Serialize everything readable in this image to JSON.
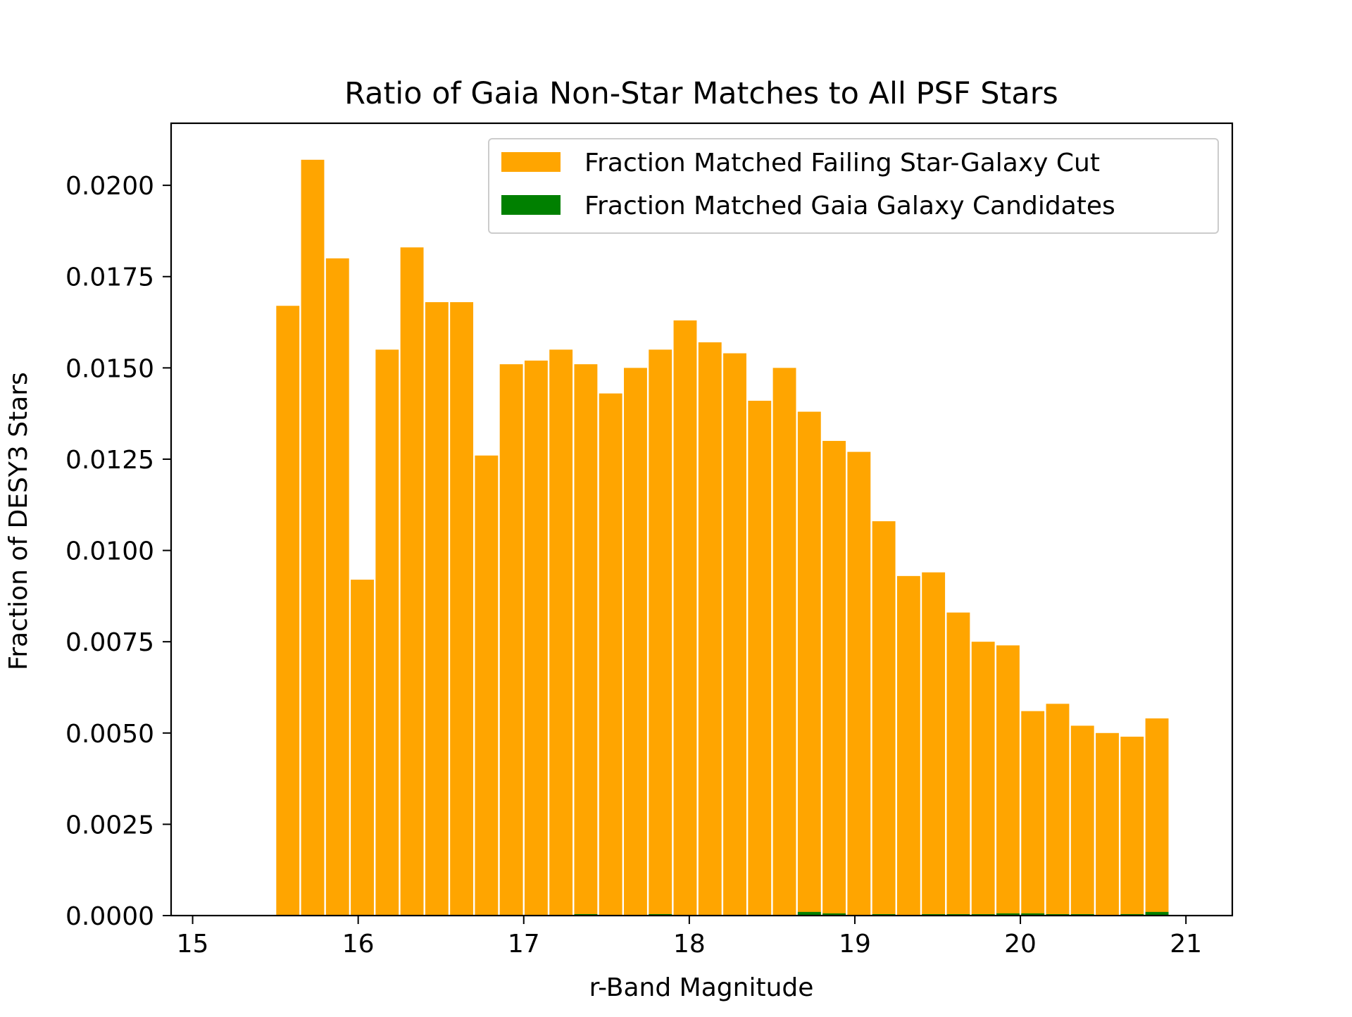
{
  "chart_data": {
    "type": "bar",
    "title": "Ratio of Gaia Non-Star Matches to All PSF Stars",
    "xlabel": "r-Band Magnitude",
    "ylabel": "Fraction of DESY3 Stars",
    "xlim": [
      14.87,
      21.28
    ],
    "ylim": [
      0,
      0.0217
    ],
    "bin_edges_start": 15.5,
    "bin_width": 0.15,
    "xticks": [
      15,
      16,
      17,
      18,
      19,
      20,
      21
    ],
    "xtick_labels": [
      "15",
      "16",
      "17",
      "18",
      "19",
      "20",
      "21"
    ],
    "yticks": [
      0,
      0.0025,
      0.005,
      0.0075,
      0.01,
      0.0125,
      0.015,
      0.0175,
      0.02
    ],
    "ytick_labels": [
      "0.0000",
      "0.0025",
      "0.0050",
      "0.0075",
      "0.0100",
      "0.0125",
      "0.0150",
      "0.0175",
      "0.0200"
    ],
    "grid": false,
    "legend_position": "top-right",
    "series": [
      {
        "name": "Fraction Matched Failing Star-Galaxy Cut",
        "color": "#ffa500",
        "values": [
          0.0167,
          0.0207,
          0.018,
          0.0092,
          0.0155,
          0.0183,
          0.0168,
          0.0168,
          0.0126,
          0.0151,
          0.0152,
          0.0155,
          0.0151,
          0.0143,
          0.015,
          0.0155,
          0.0163,
          0.0157,
          0.0154,
          0.0141,
          0.015,
          0.0138,
          0.013,
          0.0127,
          0.0108,
          0.0093,
          0.0094,
          0.0083,
          0.0075,
          0.0074,
          0.0056,
          0.0058,
          0.0052,
          0.005,
          0.0049,
          0.0054
        ]
      },
      {
        "name": "Fraction Matched Gaia Galaxy Candidates",
        "color": "#008000",
        "values": [
          0,
          0,
          0,
          0,
          0,
          0,
          0,
          0,
          0,
          0,
          0,
          0,
          4e-05,
          0,
          0,
          4e-05,
          0,
          0,
          0,
          0,
          0,
          0.0001,
          6e-05,
          0,
          3e-05,
          0,
          3e-05,
          3e-05,
          3e-05,
          6e-05,
          6e-05,
          3e-05,
          3e-05,
          0,
          4e-05,
          0.0001
        ]
      }
    ]
  }
}
